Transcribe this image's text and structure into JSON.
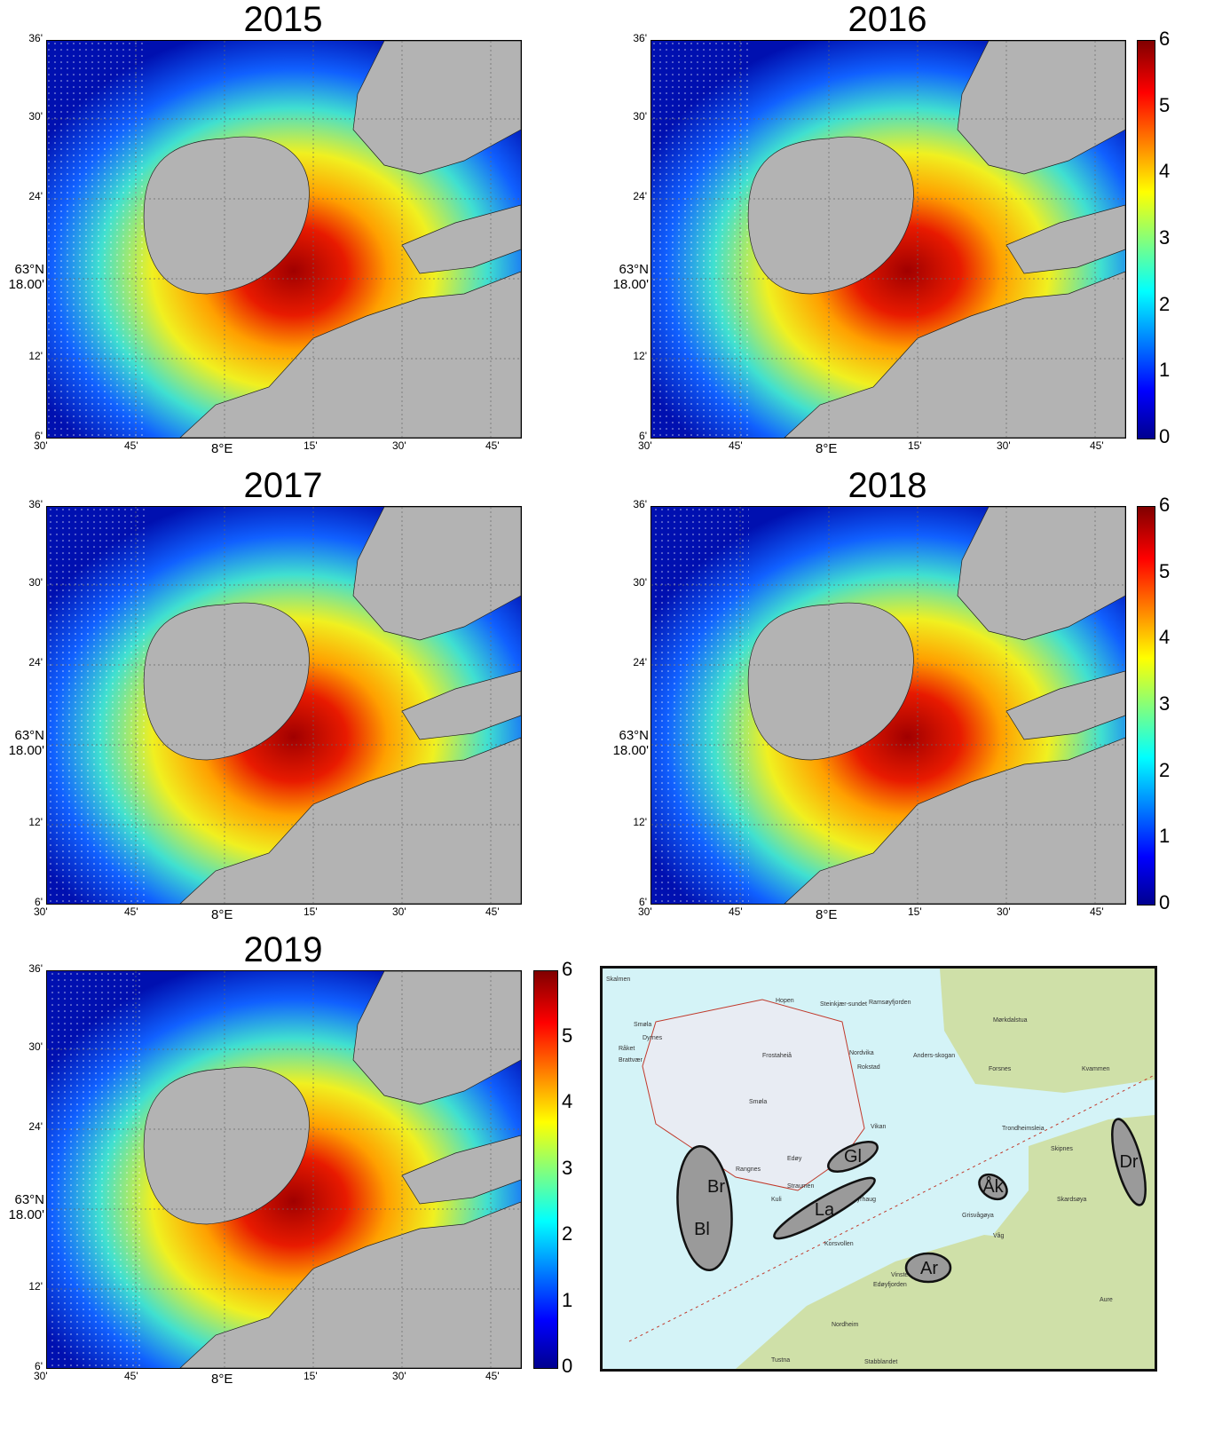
{
  "panels": [
    {
      "year": "2015",
      "has_colorbar": false
    },
    {
      "year": "2016",
      "has_colorbar": true
    },
    {
      "year": "2017",
      "has_colorbar": false
    },
    {
      "year": "2018",
      "has_colorbar": true
    },
    {
      "year": "2019",
      "has_colorbar": true
    }
  ],
  "lat_ticks": [
    "36'",
    "30'",
    "24'",
    "12'",
    "6'"
  ],
  "lat_center": [
    "63°N",
    "18.00'"
  ],
  "lon_ticks": [
    "30'",
    "45'",
    "15'",
    "30'",
    "45'"
  ],
  "lon_center": "8°E",
  "colorbar": {
    "ticks": [
      "0",
      "1",
      "2",
      "3",
      "4",
      "5",
      "6"
    ],
    "colors": [
      "#00008f",
      "#0000ff",
      "#00ffff",
      "#ffff00",
      "#ff0000",
      "#800000"
    ]
  },
  "ref_map": {
    "labels": [
      "Skalmen",
      "Smøla",
      "Hopen",
      "Steinkjær-sundet",
      "Frostaheiå",
      "Dyrnes",
      "Råket",
      "Brattvær",
      "Nordvika",
      "Rokstad",
      "Smøla",
      "Vikan",
      "Edøy",
      "Rangnes",
      "Straumen",
      "Kyrhaug",
      "Kuli",
      "Korsvollen",
      "Anders-skogan",
      "Forsnes",
      "Kvammen",
      "Mørkdalstua",
      "Ramsøyfjorden",
      "Trondheimsleia",
      "Edøyfjorden",
      "Skipnes",
      "Skardsøya",
      "Grisvågøya",
      "Våg",
      "Vinsternes",
      "Nordheim",
      "Tustna",
      "Stabblandet",
      "Aure"
    ],
    "areas": [
      "Br",
      "Bl",
      "Gl",
      "La",
      "Åk",
      "Ar",
      "Dr"
    ]
  }
}
